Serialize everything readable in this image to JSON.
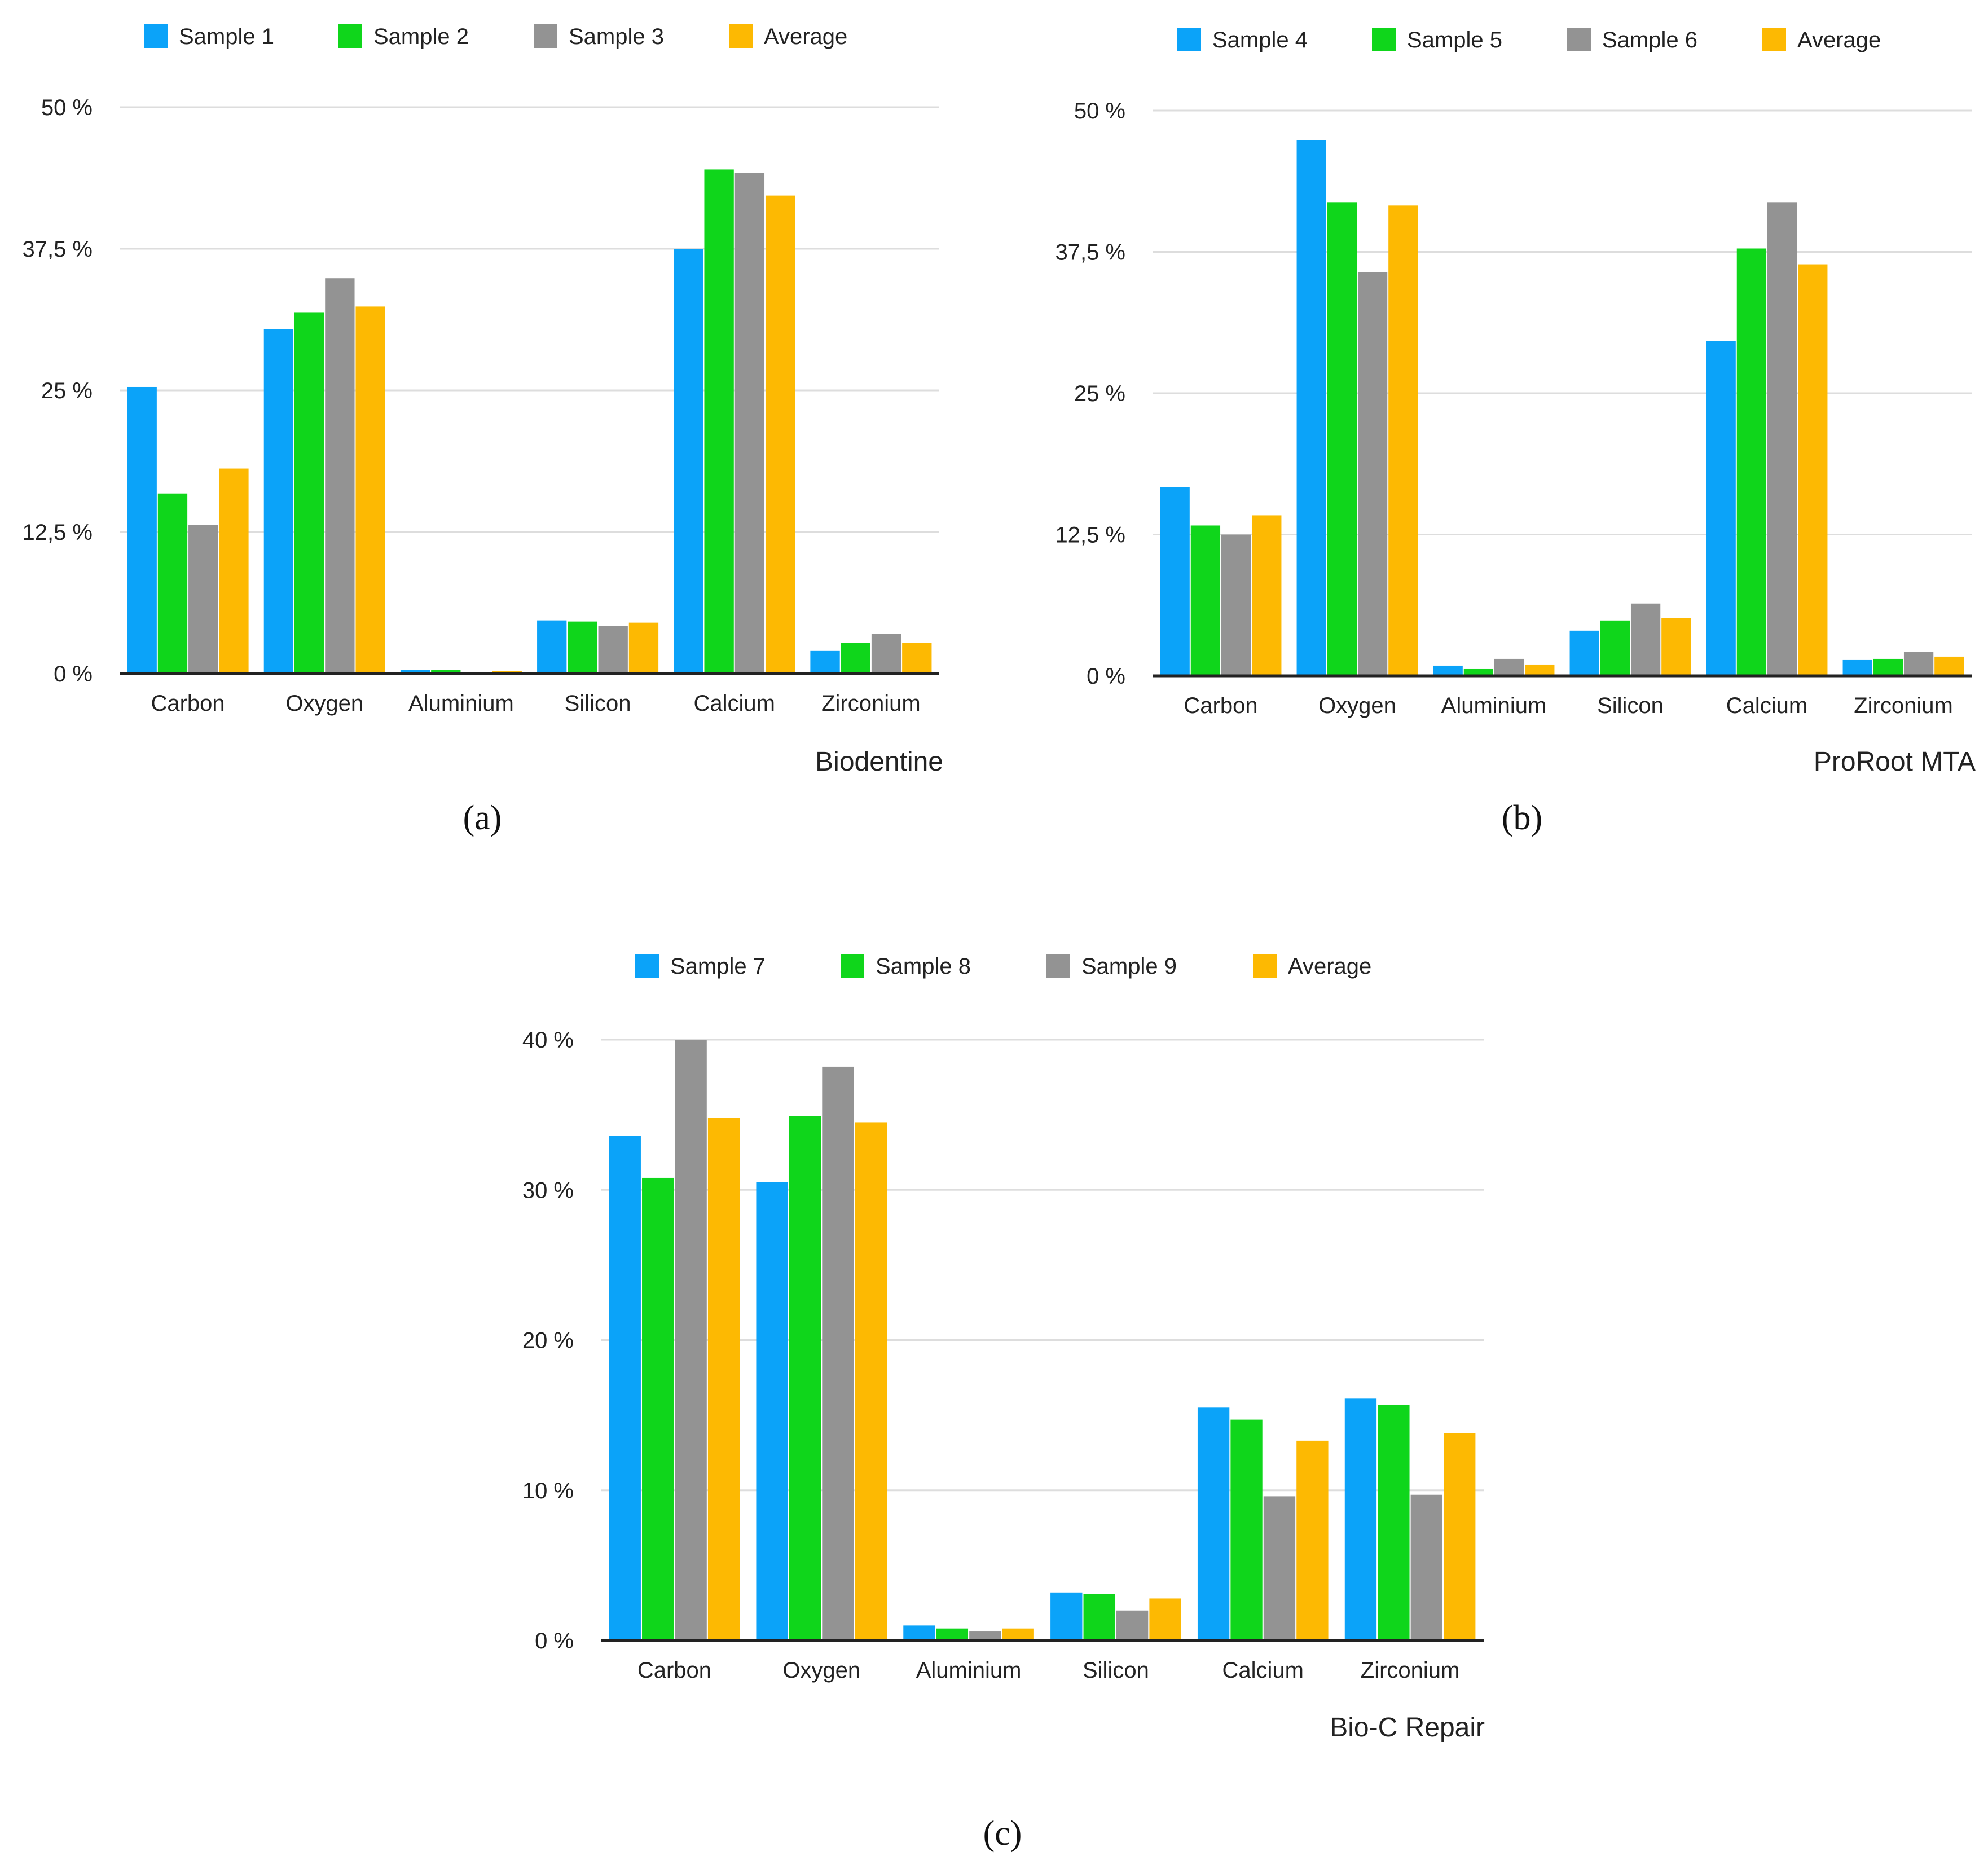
{
  "colors": {
    "sample_a": "#0ba3f9",
    "sample_b": "#0fd61b",
    "sample_c": "#939393",
    "average": "#fdb902",
    "grid": "#dddddd",
    "axis": "#222222"
  },
  "chart_data": [
    {
      "type": "bar",
      "title": "Biodentine",
      "caption": "(a)",
      "categories": [
        "Carbon",
        "Oxygen",
        "Aluminium",
        "Silicon",
        "Calcium",
        "Zirconium"
      ],
      "series": [
        {
          "name": "Sample 1",
          "values": [
            25.3,
            30.4,
            0.3,
            4.7,
            37.5,
            2.0
          ]
        },
        {
          "name": "Sample 2",
          "values": [
            15.9,
            31.9,
            0.3,
            4.6,
            44.5,
            2.7
          ]
        },
        {
          "name": "Sample 3",
          "values": [
            13.1,
            34.9,
            0.1,
            4.2,
            44.2,
            3.5
          ]
        },
        {
          "name": "Average",
          "values": [
            18.1,
            32.4,
            0.2,
            4.5,
            42.2,
            2.7
          ]
        }
      ],
      "yticks": [
        0,
        12.5,
        25,
        37.5,
        50
      ],
      "ytick_labels": [
        "0 %",
        "12,5 %",
        "25 %",
        "37,5 %",
        "50 %"
      ],
      "ylim": [
        0,
        50
      ],
      "xlabel": "",
      "ylabel": "",
      "grid": true,
      "legend_position": "top"
    },
    {
      "type": "bar",
      "title": "ProRoot MTA",
      "caption": "(b)",
      "categories": [
        "Carbon",
        "Oxygen",
        "Aluminium",
        "Silicon",
        "Calcium",
        "Zirconium"
      ],
      "series": [
        {
          "name": "Sample 4",
          "values": [
            16.7,
            47.4,
            0.9,
            4.0,
            29.6,
            1.4
          ]
        },
        {
          "name": "Sample 5",
          "values": [
            13.3,
            41.9,
            0.6,
            4.9,
            37.8,
            1.5
          ]
        },
        {
          "name": "Sample 6",
          "values": [
            12.5,
            35.7,
            1.5,
            6.4,
            41.9,
            2.1
          ]
        },
        {
          "name": "Average",
          "values": [
            14.2,
            41.6,
            1.0,
            5.1,
            36.4,
            1.7
          ]
        }
      ],
      "yticks": [
        0,
        12.5,
        25,
        37.5,
        50
      ],
      "ytick_labels": [
        "0 %",
        "12,5 %",
        "25 %",
        "37,5 %",
        "50 %"
      ],
      "ylim": [
        0,
        50
      ],
      "xlabel": "",
      "ylabel": "",
      "grid": true,
      "legend_position": "top"
    },
    {
      "type": "bar",
      "title": "Bio-C Repair",
      "caption": "(c)",
      "categories": [
        "Carbon",
        "Oxygen",
        "Aluminium",
        "Silicon",
        "Calcium",
        "Zirconium"
      ],
      "series": [
        {
          "name": "Sample 7",
          "values": [
            33.6,
            30.5,
            1.0,
            3.2,
            15.5,
            16.1
          ]
        },
        {
          "name": "Sample 8",
          "values": [
            30.8,
            34.9,
            0.8,
            3.1,
            14.7,
            15.7
          ]
        },
        {
          "name": "Sample 9",
          "values": [
            40.0,
            38.2,
            0.6,
            2.0,
            9.6,
            9.7
          ]
        },
        {
          "name": "Average",
          "values": [
            34.8,
            34.5,
            0.8,
            2.8,
            13.3,
            13.8
          ]
        }
      ],
      "yticks": [
        0,
        10,
        20,
        30,
        40
      ],
      "ytick_labels": [
        "0 %",
        "10 %",
        "20 %",
        "30 %",
        "40 %"
      ],
      "ylim": [
        0,
        40
      ],
      "xlabel": "",
      "ylabel": "",
      "grid": true,
      "legend_position": "top"
    }
  ]
}
